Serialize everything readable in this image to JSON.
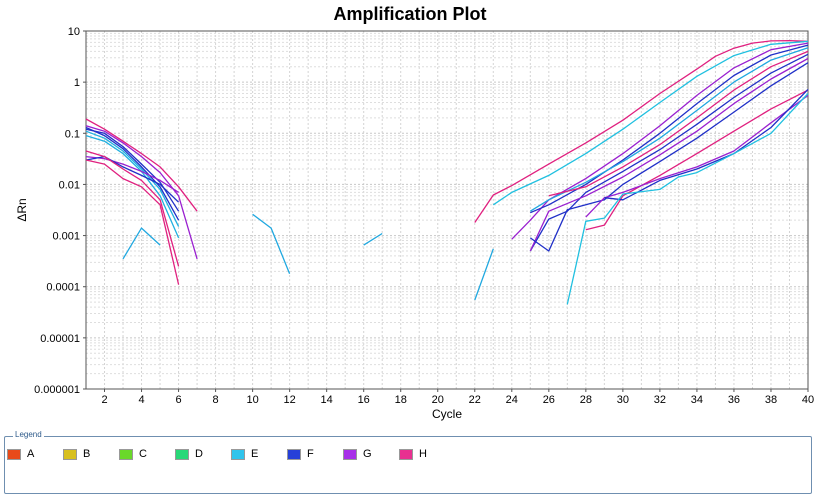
{
  "chart_data": {
    "type": "line",
    "title": "Amplification Plot",
    "xlabel": "Cycle",
    "ylabel": "ΔRn",
    "xlim": [
      1,
      40
    ],
    "ylim": [
      1e-06,
      10
    ],
    "yscale": "log",
    "grid": true,
    "xticks": [
      2,
      4,
      6,
      8,
      10,
      12,
      14,
      16,
      18,
      20,
      22,
      24,
      26,
      28,
      30,
      32,
      34,
      36,
      38,
      40
    ],
    "yticks": [
      {
        "value": 10,
        "label": "10"
      },
      {
        "value": 1,
        "label": "1"
      },
      {
        "value": 0.1,
        "label": "0.1"
      },
      {
        "value": 0.01,
        "label": "0.01"
      },
      {
        "value": 0.001,
        "label": "0.001"
      },
      {
        "value": 0.0001,
        "label": "0.0001"
      },
      {
        "value": 1e-05,
        "label": "0.00001"
      },
      {
        "value": 1e-06,
        "label": "0.000001"
      }
    ],
    "series": [
      {
        "color": "#e0207f",
        "points": [
          [
            1,
            0.19
          ],
          [
            2,
            0.12
          ],
          [
            3,
            0.07
          ],
          [
            4,
            0.04
          ],
          [
            5,
            0.022
          ],
          [
            6,
            0.009
          ],
          [
            7,
            0.003
          ]
        ]
      },
      {
        "color": "#9a20d0",
        "points": [
          [
            1,
            0.14
          ],
          [
            2,
            0.11
          ],
          [
            3,
            0.065
          ],
          [
            4,
            0.035
          ],
          [
            5,
            0.017
          ],
          [
            6,
            0.006
          ],
          [
            7,
            0.00035
          ]
        ]
      },
      {
        "color": "#2030c8",
        "points": [
          [
            1,
            0.12
          ],
          [
            2,
            0.1
          ],
          [
            3,
            0.055
          ],
          [
            4,
            0.025
          ],
          [
            5,
            0.011
          ],
          [
            6,
            0.003
          ]
        ]
      },
      {
        "color": "#20b0e0",
        "points": [
          [
            1,
            0.11
          ],
          [
            2,
            0.08
          ],
          [
            3,
            0.045
          ],
          [
            4,
            0.02
          ],
          [
            5,
            0.008
          ],
          [
            6,
            0.0015
          ]
        ]
      },
      {
        "color": "#20b0e0",
        "points": [
          [
            1,
            0.09
          ],
          [
            2,
            0.07
          ],
          [
            3,
            0.04
          ],
          [
            4,
            0.018
          ],
          [
            5,
            0.006
          ],
          [
            6,
            0.0009
          ]
        ]
      },
      {
        "color": "#2030c8",
        "points": [
          [
            1,
            0.13
          ],
          [
            2,
            0.09
          ],
          [
            3,
            0.05
          ],
          [
            4,
            0.022
          ],
          [
            5,
            0.009
          ],
          [
            6,
            0.002
          ]
        ]
      },
      {
        "color": "#9a20d0",
        "points": [
          [
            1,
            0.035
          ],
          [
            2,
            0.032
          ],
          [
            3,
            0.025
          ],
          [
            4,
            0.018
          ],
          [
            5,
            0.012
          ],
          [
            6,
            0.007
          ]
        ]
      },
      {
        "color": "#2030c8",
        "points": [
          [
            1,
            0.03
          ],
          [
            2,
            0.035
          ],
          [
            3,
            0.022
          ],
          [
            4,
            0.015
          ],
          [
            5,
            0.01
          ],
          [
            6,
            0.0045
          ]
        ]
      },
      {
        "color": "#e0207f",
        "points": [
          [
            1,
            0.045
          ],
          [
            2,
            0.035
          ],
          [
            3,
            0.02
          ],
          [
            4,
            0.012
          ],
          [
            5,
            0.005
          ],
          [
            6,
            0.00025
          ]
        ]
      },
      {
        "color": "#e0207f",
        "points": [
          [
            1,
            0.03
          ],
          [
            2,
            0.025
          ],
          [
            3,
            0.013
          ],
          [
            4,
            0.009
          ],
          [
            5,
            0.004
          ],
          [
            6,
            0.00011
          ]
        ]
      },
      {
        "color": "#20a8e0",
        "points": [
          [
            3,
            0.00035
          ],
          [
            4,
            0.0014
          ],
          [
            5,
            0.00065
          ]
        ]
      },
      {
        "color": "#20a8e0",
        "points": [
          [
            10,
            0.0026
          ],
          [
            11,
            0.0014
          ],
          [
            12,
            0.00018
          ]
        ]
      },
      {
        "color": "#20a8e0",
        "points": [
          [
            16,
            0.00065
          ],
          [
            17,
            0.0011
          ]
        ]
      },
      {
        "color": "#20a8e0",
        "points": [
          [
            22,
            5.5e-05
          ],
          [
            23,
            0.00055
          ]
        ]
      },
      {
        "color": "#e0207f",
        "points": [
          [
            22,
            0.0018
          ],
          [
            23,
            0.0062
          ],
          [
            24,
            0.0095
          ],
          [
            26,
            0.025
          ],
          [
            28,
            0.065
          ],
          [
            30,
            0.18
          ],
          [
            32,
            0.6
          ],
          [
            34,
            1.8
          ],
          [
            35,
            3.2
          ],
          [
            36,
            4.6
          ],
          [
            37,
            5.8
          ],
          [
            38,
            6.4
          ],
          [
            39,
            6.5
          ],
          [
            40,
            6.3
          ]
        ]
      },
      {
        "color": "#20c0e0",
        "points": [
          [
            23,
            0.004
          ],
          [
            24,
            0.007
          ],
          [
            26,
            0.015
          ],
          [
            28,
            0.04
          ],
          [
            30,
            0.12
          ],
          [
            32,
            0.4
          ],
          [
            34,
            1.3
          ],
          [
            36,
            3.3
          ],
          [
            38,
            5.5
          ],
          [
            40,
            6.3
          ]
        ]
      },
      {
        "color": "#9a20d0",
        "points": [
          [
            24,
            0.00085
          ],
          [
            25,
            0.002
          ],
          [
            26,
            0.005
          ],
          [
            28,
            0.013
          ],
          [
            30,
            0.04
          ],
          [
            32,
            0.14
          ],
          [
            34,
            0.55
          ],
          [
            36,
            1.9
          ],
          [
            38,
            4.3
          ],
          [
            40,
            5.8
          ]
        ]
      },
      {
        "color": "#2030c8",
        "points": [
          [
            25,
            0.0028
          ],
          [
            26,
            0.004
          ],
          [
            28,
            0.01
          ],
          [
            30,
            0.03
          ],
          [
            32,
            0.1
          ],
          [
            34,
            0.38
          ],
          [
            36,
            1.35
          ],
          [
            38,
            3.4
          ],
          [
            40,
            5.3
          ]
        ]
      },
      {
        "color": "#20a8e0",
        "points": [
          [
            25,
            0.003
          ],
          [
            26,
            0.005
          ],
          [
            28,
            0.011
          ],
          [
            30,
            0.028
          ],
          [
            32,
            0.08
          ],
          [
            34,
            0.28
          ],
          [
            36,
            1.0
          ],
          [
            38,
            2.7
          ],
          [
            40,
            4.7
          ]
        ]
      },
      {
        "color": "#e0207f",
        "points": [
          [
            26,
            0.006
          ],
          [
            28,
            0.009
          ],
          [
            30,
            0.022
          ],
          [
            32,
            0.06
          ],
          [
            34,
            0.2
          ],
          [
            36,
            0.7
          ],
          [
            38,
            2.0
          ],
          [
            40,
            4.0
          ]
        ]
      },
      {
        "color": "#2030c8",
        "points": [
          [
            25,
            0.0005
          ],
          [
            26,
            0.0021
          ],
          [
            27,
            0.003
          ],
          [
            28,
            0.007
          ],
          [
            30,
            0.018
          ],
          [
            32,
            0.048
          ],
          [
            34,
            0.15
          ],
          [
            36,
            0.5
          ],
          [
            38,
            1.5
          ],
          [
            40,
            3.5
          ]
        ]
      },
      {
        "color": "#9a20d0",
        "points": [
          [
            25,
            0.0005
          ],
          [
            26,
            0.003
          ],
          [
            28,
            0.006
          ],
          [
            30,
            0.014
          ],
          [
            32,
            0.038
          ],
          [
            34,
            0.11
          ],
          [
            36,
            0.38
          ],
          [
            38,
            1.15
          ],
          [
            40,
            2.9
          ]
        ]
      },
      {
        "color": "#2030c8",
        "points": [
          [
            25,
            0.0009
          ],
          [
            26,
            0.0005
          ],
          [
            27,
            0.0032
          ],
          [
            28,
            0.004
          ],
          [
            29,
            0.005
          ],
          [
            30,
            0.01
          ],
          [
            32,
            0.028
          ],
          [
            34,
            0.08
          ],
          [
            36,
            0.26
          ],
          [
            38,
            0.85
          ],
          [
            40,
            2.4
          ]
        ]
      },
      {
        "color": "#e0207f",
        "points": [
          [
            28,
            0.0013
          ],
          [
            29,
            0.0016
          ],
          [
            30,
            0.006
          ],
          [
            32,
            0.015
          ],
          [
            34,
            0.04
          ],
          [
            36,
            0.11
          ],
          [
            38,
            0.3
          ],
          [
            40,
            0.7
          ]
        ]
      },
      {
        "color": "#9a20d0",
        "points": [
          [
            28,
            0.0023
          ],
          [
            29,
            0.0055
          ],
          [
            30,
            0.007
          ],
          [
            32,
            0.013
          ],
          [
            34,
            0.022
          ],
          [
            36,
            0.045
          ],
          [
            38,
            0.16
          ],
          [
            40,
            0.55
          ]
        ]
      },
      {
        "color": "#2030c8",
        "points": [
          [
            29,
            0.0055
          ],
          [
            30,
            0.005
          ],
          [
            32,
            0.012
          ],
          [
            34,
            0.02
          ],
          [
            36,
            0.04
          ],
          [
            38,
            0.13
          ],
          [
            40,
            0.72
          ]
        ]
      },
      {
        "color": "#20c0e0",
        "points": [
          [
            27,
            4.5e-05
          ],
          [
            28,
            0.0019
          ],
          [
            29,
            0.0022
          ],
          [
            30,
            0.0065
          ],
          [
            32,
            0.008
          ],
          [
            33,
            0.014
          ],
          [
            34,
            0.017
          ],
          [
            36,
            0.04
          ],
          [
            38,
            0.1
          ],
          [
            40,
            0.6
          ]
        ]
      }
    ]
  },
  "legend": {
    "title": "Legend",
    "items": [
      {
        "label": "A",
        "color": "#e84a1a"
      },
      {
        "label": "B",
        "color": "#d8c020"
      },
      {
        "label": "C",
        "color": "#6ad82a"
      },
      {
        "label": "D",
        "color": "#28d878"
      },
      {
        "label": "E",
        "color": "#30c4ec"
      },
      {
        "label": "F",
        "color": "#2640d8"
      },
      {
        "label": "G",
        "color": "#a830e8"
      },
      {
        "label": "H",
        "color": "#e83090"
      }
    ]
  }
}
